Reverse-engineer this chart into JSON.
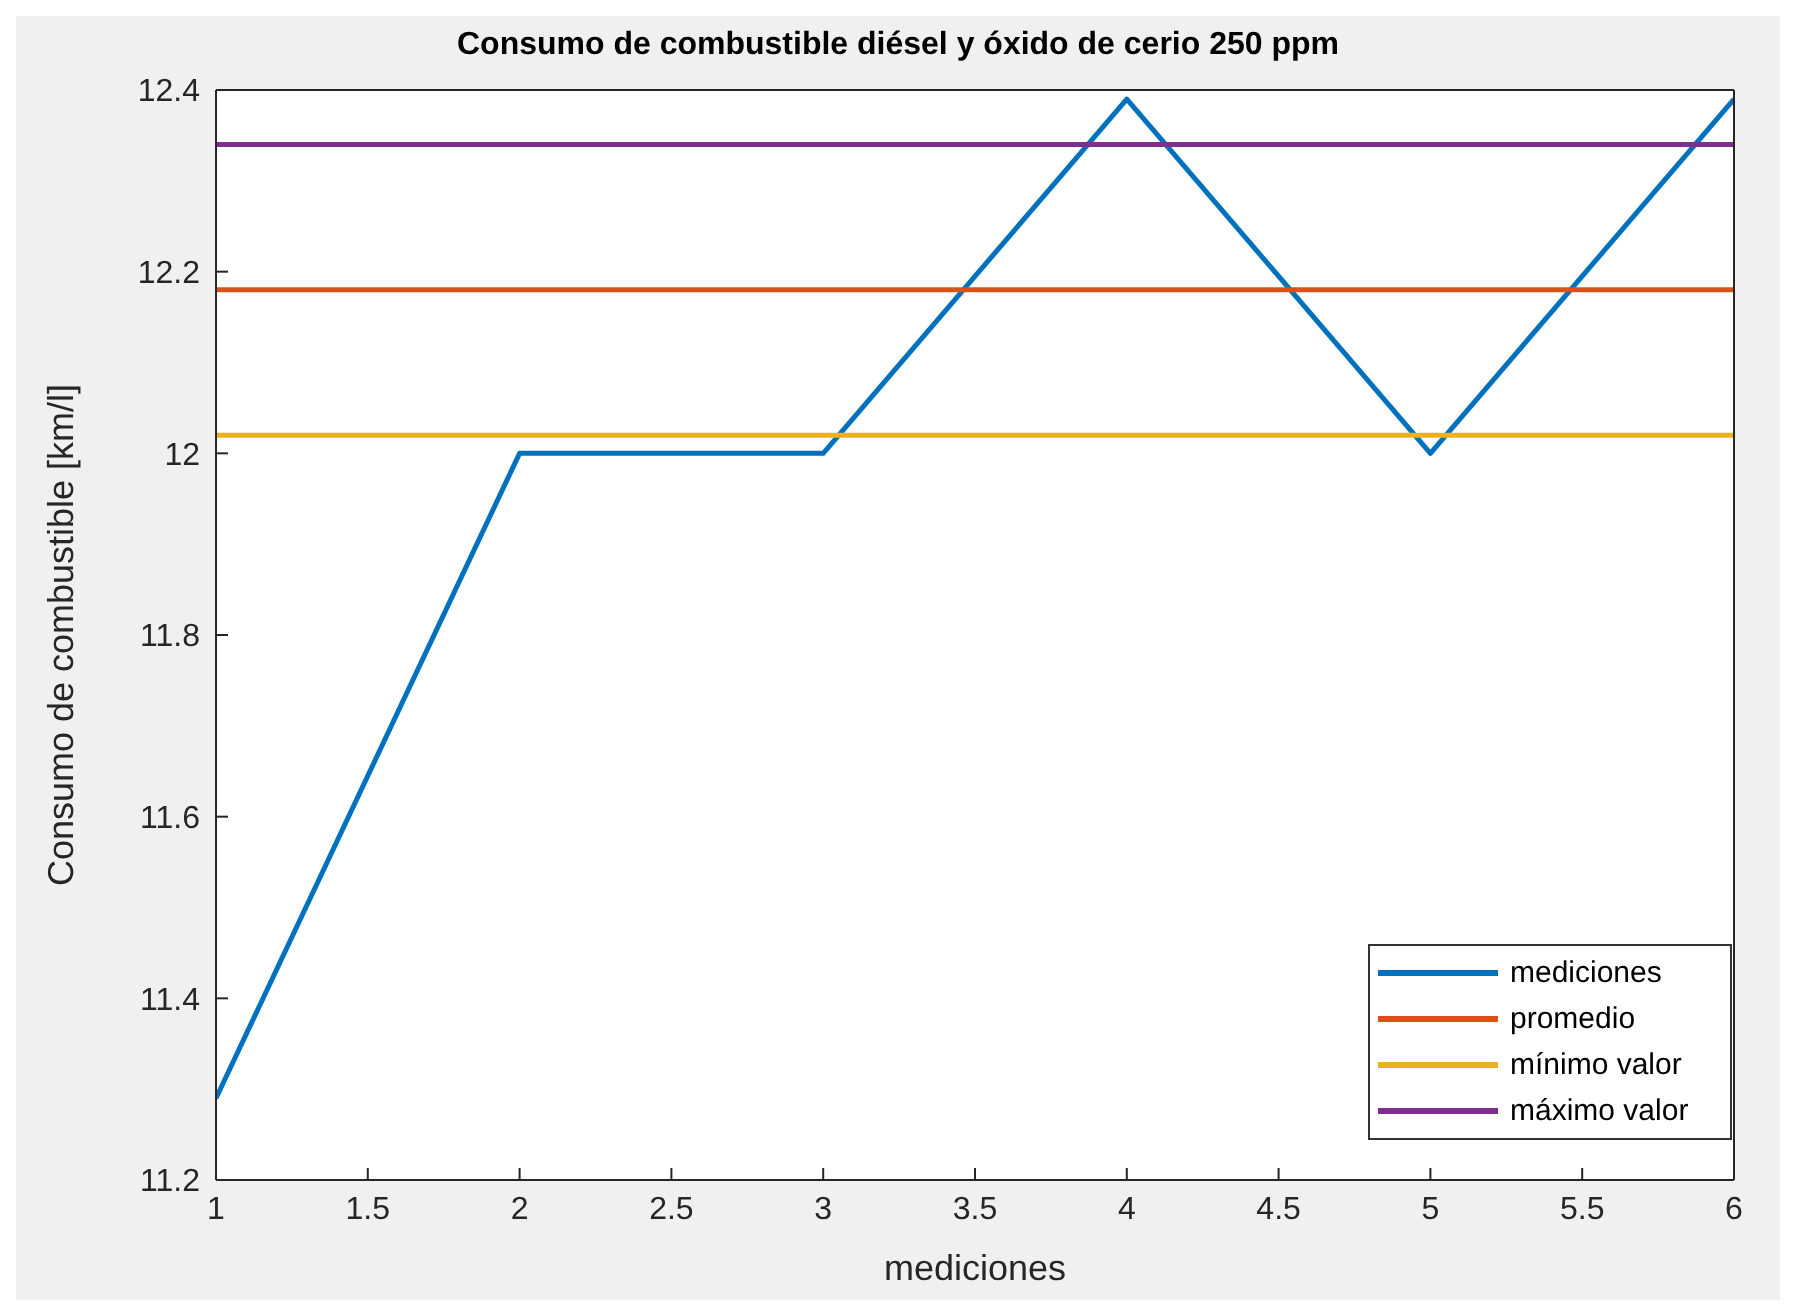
{
  "chart_data": {
    "type": "line",
    "title": "Consumo de combustible diésel y óxido de cerio 250 ppm",
    "xlabel": "mediciones",
    "ylabel": "Consumo de combustible [km/l]",
    "x": [
      1,
      2,
      3,
      4,
      5,
      6
    ],
    "series": [
      {
        "name": "mediciones",
        "color": "#0072bd",
        "values": [
          11.29,
          12.0,
          12.0,
          12.39,
          12.0,
          12.39
        ]
      },
      {
        "name": "promedio",
        "color": "#d95319",
        "values": [
          12.18,
          12.18,
          12.18,
          12.18,
          12.18,
          12.18
        ]
      },
      {
        "name": "mínimo valor",
        "color": "#edb120",
        "values": [
          12.02,
          12.02,
          12.02,
          12.02,
          12.02,
          12.02
        ]
      },
      {
        "name": "máximo valor",
        "color": "#7e2f8e",
        "values": [
          12.34,
          12.34,
          12.34,
          12.34,
          12.34,
          12.34
        ]
      }
    ],
    "xlim": [
      1,
      6
    ],
    "xticks": [
      1,
      1.5,
      2,
      2.5,
      3,
      3.5,
      4,
      4.5,
      5,
      5.5,
      6
    ],
    "ylim": [
      11.2,
      12.4
    ],
    "yticks": [
      11.2,
      11.4,
      11.6,
      11.8,
      12,
      12.2,
      12.4
    ],
    "legend": "bottom right",
    "marker": "none",
    "line_style": "solid"
  }
}
